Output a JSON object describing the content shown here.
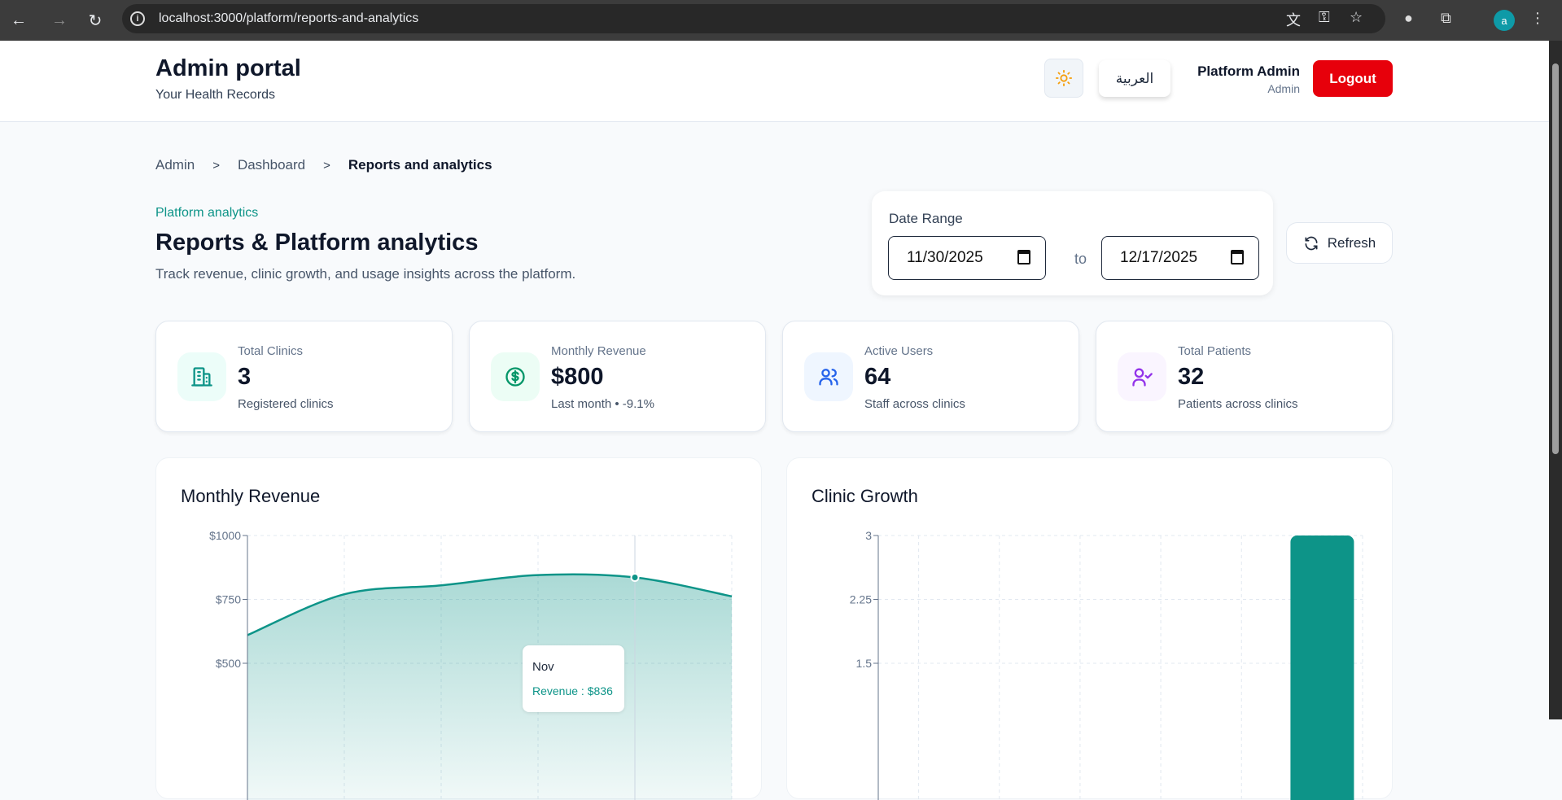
{
  "browser": {
    "url": "localhost:3000/platform/reports-and-analytics",
    "profile_initial": "a"
  },
  "header": {
    "title": "Admin portal",
    "subtitle": "Your Health Records",
    "language_button": "العربية",
    "user_name": "Platform Admin",
    "user_role": "Admin",
    "logout_label": "Logout"
  },
  "breadcrumb": [
    "Admin",
    "Dashboard",
    "Reports and analytics"
  ],
  "page": {
    "eyebrow": "Platform analytics",
    "title": "Reports & Platform analytics",
    "description": "Track revenue, clinic growth, and usage insights across the platform."
  },
  "date_range": {
    "label": "Date Range",
    "from": "11/30/2025",
    "to_label": "to",
    "to": "12/17/2025",
    "refresh_label": "Refresh"
  },
  "stats": [
    {
      "label": "Total Clinics",
      "value": "3",
      "sub": "Registered clinics",
      "icon": "building-icon",
      "color": "#0d9488",
      "bg": "#ecfdf9"
    },
    {
      "label": "Monthly Revenue",
      "value": "$800",
      "sub": "Last month • -9.1%",
      "icon": "dollar-circle-icon",
      "color": "#059669",
      "bg": "#ecfdf5"
    },
    {
      "label": "Active Users",
      "value": "64",
      "sub": "Staff across clinics",
      "icon": "users-icon",
      "color": "#2563eb",
      "bg": "#eff6ff"
    },
    {
      "label": "Total Patients",
      "value": "32",
      "sub": "Patients across clinics",
      "icon": "user-check-icon",
      "color": "#9333ea",
      "bg": "#faf5ff"
    }
  ],
  "chart_data": [
    {
      "type": "area",
      "title": "Monthly Revenue",
      "yticks": [
        "$1000",
        "$750",
        "$500"
      ],
      "ylim": [
        0,
        1000
      ],
      "grid": true,
      "color": "#0d9488",
      "values": [
        610,
        770,
        805,
        845,
        836,
        762
      ],
      "tooltip": {
        "label": "Nov",
        "text": "Revenue : $836",
        "index": 4
      }
    },
    {
      "type": "bar",
      "title": "Clinic Growth",
      "yticks": [
        "3",
        "2.25",
        "1.5"
      ],
      "ylim": [
        0,
        3
      ],
      "grid": true,
      "color": "#0d9488",
      "values": [
        0,
        0,
        0,
        0,
        0,
        3
      ]
    }
  ]
}
